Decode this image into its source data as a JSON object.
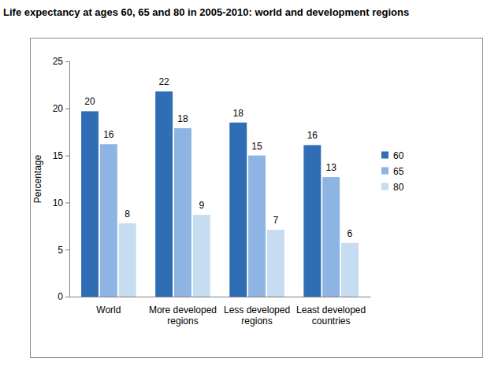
{
  "chart_data": {
    "type": "bar",
    "title": "Life expectancy at ages 60, 65 and 80 in 2005-2010: world and development regions",
    "y_label": "Percentage",
    "categories": [
      "World",
      "More developed regions",
      "Less developed regions",
      "Least developed countries"
    ],
    "series": [
      {
        "name": "60",
        "color": "#2f6db5",
        "values": [
          19.7,
          21.8,
          18.5,
          16.1
        ],
        "value_labels": [
          "20",
          "22",
          "18",
          "16"
        ]
      },
      {
        "name": "65",
        "color": "#8db4e2",
        "values": [
          16.2,
          17.9,
          15.0,
          12.7
        ],
        "value_labels": [
          "16",
          "18",
          "15",
          "13"
        ]
      },
      {
        "name": "80",
        "color": "#c5dcf1",
        "values": [
          7.8,
          8.7,
          7.1,
          5.7
        ],
        "value_labels": [
          "8",
          "9",
          "7",
          "6"
        ]
      }
    ],
    "ylim": [
      0,
      25
    ],
    "yticks": [
      0,
      5,
      10,
      15,
      20,
      25
    ],
    "grid": false,
    "legend": "right",
    "data_labels": true
  }
}
